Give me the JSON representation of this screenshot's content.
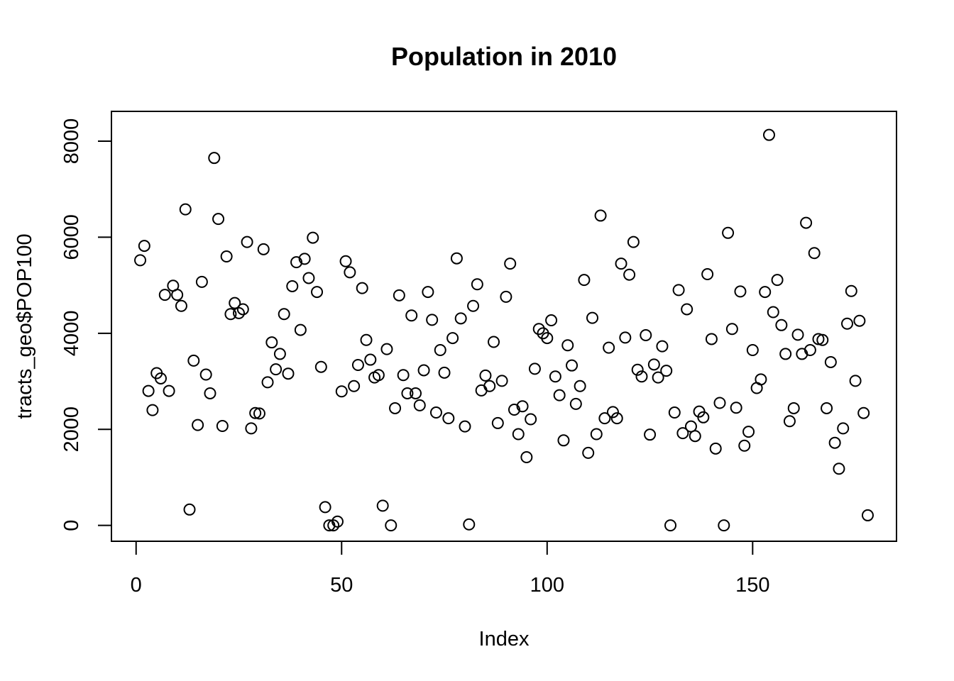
{
  "chart_data": {
    "type": "scatter",
    "title": "Population in 2010",
    "xlabel": "Index",
    "ylabel": "tracts_geo$POP100",
    "xlim": [
      -6,
      185
    ],
    "ylim": [
      -330,
      8620
    ],
    "x_ticks": [
      0,
      50,
      100,
      150
    ],
    "y_ticks": [
      0,
      2000,
      4000,
      6000,
      8000
    ],
    "x_tick_labels": [
      "0",
      "50",
      "100",
      "150"
    ],
    "y_tick_labels": [
      "0",
      "2000",
      "4000",
      "6000",
      "8000"
    ],
    "grid": false,
    "legend": false,
    "marker": "open-circle",
    "x": [
      1,
      2,
      3,
      4,
      5,
      6,
      7,
      8,
      9,
      10,
      11,
      12,
      13,
      14,
      15,
      16,
      17,
      18,
      19,
      20,
      21,
      22,
      23,
      24,
      25,
      26,
      27,
      28,
      29,
      30,
      31,
      32,
      33,
      34,
      35,
      36,
      37,
      38,
      39,
      40,
      41,
      42,
      43,
      44,
      45,
      46,
      47,
      48,
      49,
      50,
      51,
      52,
      53,
      54,
      55,
      56,
      57,
      58,
      59,
      60,
      61,
      62,
      63,
      64,
      65,
      66,
      67,
      68,
      69,
      70,
      71,
      72,
      73,
      74,
      75,
      76,
      77,
      78,
      79,
      80,
      81,
      82,
      83,
      84,
      85,
      86,
      87,
      88,
      89,
      90,
      91,
      92,
      93,
      94,
      95,
      96,
      97,
      98,
      99,
      100,
      101,
      102,
      103,
      104,
      105,
      106,
      107,
      108,
      109,
      110,
      111,
      112,
      113,
      114,
      115,
      116,
      117,
      118,
      119,
      120,
      121,
      122,
      123,
      124,
      125,
      126,
      127,
      128,
      129,
      130,
      131,
      132,
      133,
      134,
      135,
      136,
      137,
      138,
      139,
      140,
      141,
      142,
      143,
      144,
      145,
      146,
      147,
      148,
      149,
      150,
      151,
      152,
      153,
      154,
      155,
      156,
      157,
      158,
      159,
      160,
      161,
      162,
      163,
      164,
      165,
      166,
      167,
      168,
      169,
      170,
      171,
      172,
      173,
      174,
      175,
      176,
      177,
      178
    ],
    "y": [
      5520,
      5820,
      2800,
      2400,
      3170,
      3060,
      4800,
      2800,
      4990,
      4800,
      4570,
      6580,
      330,
      3430,
      2090,
      5070,
      3140,
      2750,
      7650,
      6380,
      2070,
      5600,
      4400,
      4630,
      4420,
      4500,
      5900,
      2020,
      2340,
      2330,
      5750,
      2980,
      3810,
      3250,
      3570,
      4400,
      3160,
      4980,
      5480,
      4070,
      5550,
      5150,
      5990,
      4860,
      3300,
      380,
      0,
      0,
      80,
      2790,
      5500,
      5270,
      2900,
      3340,
      4940,
      3860,
      3450,
      3080,
      3130,
      410,
      3670,
      0,
      2440,
      4790,
      3130,
      2750,
      4370,
      2750,
      2500,
      3230,
      4860,
      4280,
      2350,
      3650,
      3180,
      2230,
      3900,
      5560,
      4310,
      2060,
      20,
      4570,
      5020,
      2810,
      3120,
      2900,
      3820,
      2130,
      3010,
      4760,
      5450,
      2410,
      1900,
      2480,
      1420,
      2210,
      3260,
      4090,
      4000,
      3900,
      4270,
      3100,
      2710,
      1770,
      3750,
      3330,
      2530,
      2900,
      5110,
      1510,
      4320,
      1900,
      6450,
      2230,
      3700,
      2360,
      2230,
      5450,
      3910,
      5220,
      5900,
      3240,
      3100,
      3960,
      1890,
      3350,
      3080,
      3730,
      3220,
      0,
      2350,
      4900,
      1920,
      4500,
      2060,
      1860,
      2370,
      2250,
      5230,
      3880,
      1600,
      2550,
      0,
      6090,
      4090,
      2450,
      4870,
      1660,
      1950,
      3650,
      2860,
      3040,
      4860,
      8130,
      4440,
      5110,
      4170,
      3570,
      2170,
      2440,
      3970,
      3570,
      6300,
      3650,
      5670,
      3880,
      3860,
      2440,
      3400,
      1720,
      1180,
      2020,
      4200,
      4880,
      3010,
      4260,
      2340,
      210
    ]
  }
}
